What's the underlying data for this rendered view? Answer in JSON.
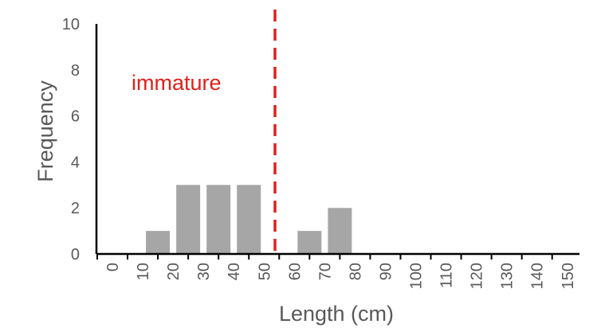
{
  "chart_data": {
    "type": "bar",
    "title": "",
    "xlabel": "Length (cm)",
    "ylabel": "Frequency",
    "ylim": [
      0,
      10
    ],
    "yticks": [
      "0",
      "2",
      "4",
      "6",
      "8",
      "10"
    ],
    "categories": [
      "0",
      "10",
      "20",
      "30",
      "40",
      "50",
      "60",
      "70",
      "80",
      "90",
      "100",
      "110",
      "120",
      "130",
      "140",
      "150"
    ],
    "values": [
      0,
      0,
      1,
      3,
      3,
      3,
      0,
      1,
      2,
      0,
      0,
      0,
      0,
      0,
      0,
      0
    ],
    "bar_color": "#a6a6a6",
    "threshold": {
      "label": "immature",
      "x_value": 55,
      "color": "#e0201b",
      "style": "dashed"
    },
    "grid": false,
    "legend": "none"
  }
}
